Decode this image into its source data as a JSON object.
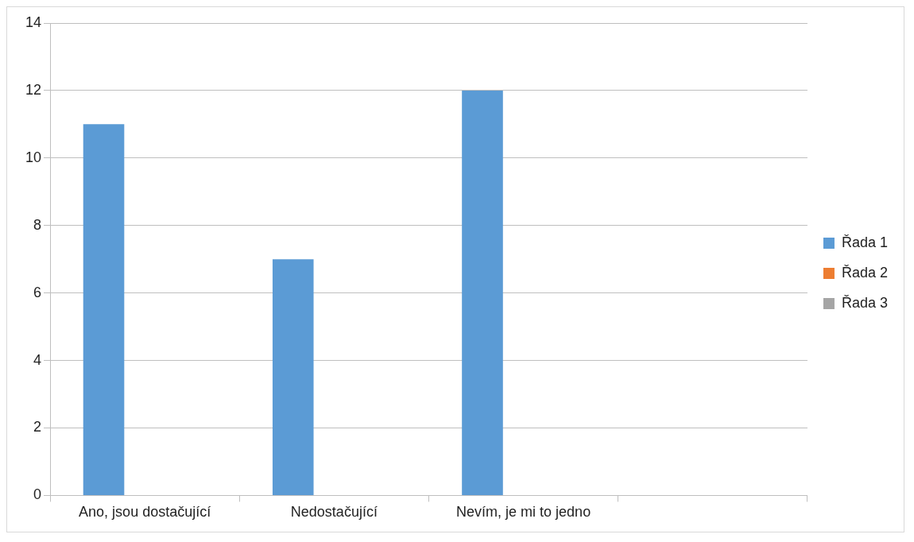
{
  "chart_data": {
    "type": "bar",
    "categories": [
      "Ano, jsou dostačující",
      "Nedostačující",
      "Nevím, je mi to jedno",
      null
    ],
    "series": [
      {
        "name": "Řada 1",
        "color": "#5b9bd5",
        "values": [
          11,
          7,
          12,
          null
        ]
      },
      {
        "name": "Řada 2",
        "color": "#ed7d31",
        "values": [
          null,
          null,
          null,
          null
        ]
      },
      {
        "name": "Řada 3",
        "color": "#a5a5a5",
        "values": [
          null,
          null,
          null,
          null
        ]
      }
    ],
    "ylim": [
      0,
      14
    ],
    "yticks": [
      0,
      2,
      4,
      6,
      8,
      10,
      12,
      14
    ],
    "grid": "y",
    "legend": "right"
  }
}
